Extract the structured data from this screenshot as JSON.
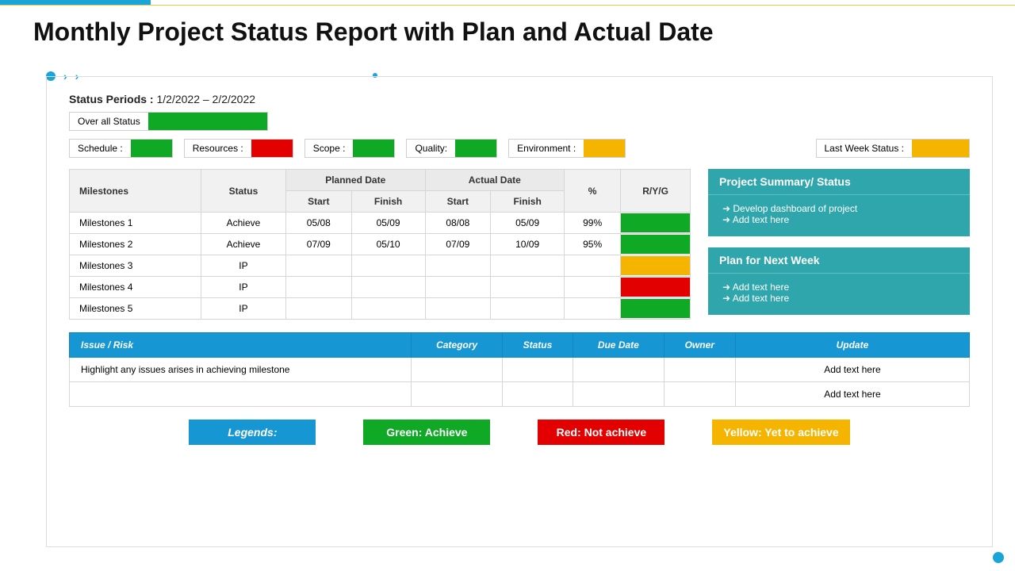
{
  "colors": {
    "accent_blue": "#1aa5d8",
    "header_blue": "#1796d4",
    "teal": "#2fa6ab",
    "green": "#0fa925",
    "red": "#e20000",
    "yellow": "#f5b400",
    "border_gray": "#cfcfcf"
  },
  "title": "Monthly Project Status Report with Plan and Actual Date",
  "status_periods": {
    "label": "Status Periods :",
    "value": "1/2/2022 – 2/2/2022"
  },
  "overall": {
    "label": "Over all Status",
    "color": "#0fa925"
  },
  "status_strip": [
    {
      "label": "Schedule :",
      "color": "#0fa925"
    },
    {
      "label": "Resources :",
      "color": "#e20000"
    },
    {
      "label": "Scope :",
      "color": "#0fa925"
    },
    {
      "label": "Quality:",
      "color": "#0fa925"
    },
    {
      "label": "Environment :",
      "color": "#f5b400"
    }
  ],
  "last_week": {
    "label": "Last Week Status :",
    "color": "#f5b400"
  },
  "milestones": {
    "headers": {
      "milestones": "Milestones",
      "status": "Status",
      "planned": "Planned Date",
      "actual": "Actual Date",
      "start": "Start",
      "finish": "Finish",
      "pct": "%",
      "ryg": "R/Y/G"
    },
    "rows": [
      {
        "name": "Milestones 1",
        "status": "Achieve",
        "p_start": "05/08",
        "p_finish": "05/09",
        "a_start": "08/08",
        "a_finish": "05/09",
        "pct": "99%",
        "ryg": "#0fa925"
      },
      {
        "name": "Milestones 2",
        "status": "Achieve",
        "p_start": "07/09",
        "p_finish": "05/10",
        "a_start": "07/09",
        "a_finish": "10/09",
        "pct": "95%",
        "ryg": "#0fa925"
      },
      {
        "name": "Milestones 3",
        "status": "IP",
        "p_start": "",
        "p_finish": "",
        "a_start": "",
        "a_finish": "",
        "pct": "",
        "ryg": "#f5b400"
      },
      {
        "name": "Milestones 4",
        "status": "IP",
        "p_start": "",
        "p_finish": "",
        "a_start": "",
        "a_finish": "",
        "pct": "",
        "ryg": "#e20000"
      },
      {
        "name": "Milestones 5",
        "status": "IP",
        "p_start": "",
        "p_finish": "",
        "a_start": "",
        "a_finish": "",
        "pct": "",
        "ryg": "#0fa925"
      }
    ]
  },
  "side_panels": {
    "summary": {
      "title": "Project  Summary/ Status",
      "items": [
        "Develop  dashboard  of project",
        "Add text here"
      ]
    },
    "plan": {
      "title": "Plan for Next Week",
      "items": [
        "Add text here",
        "Add text here"
      ]
    }
  },
  "issues": {
    "headers": [
      "Issue / Risk",
      "Category",
      "Status",
      "Due Date",
      "Owner",
      "Update"
    ],
    "rows": [
      {
        "issue": "Highlight any issues arises in achieving milestone",
        "category": "",
        "status": "",
        "due": "",
        "owner": "",
        "update": "Add text here"
      },
      {
        "issue": "",
        "category": "",
        "status": "",
        "due": "",
        "owner": "",
        "update": "Add text here"
      }
    ]
  },
  "legends": {
    "label": "Legends:",
    "items": [
      {
        "text": "Green: Achieve",
        "bg": "#0fa925"
      },
      {
        "text": "Red: Not achieve",
        "bg": "#e20000"
      },
      {
        "text": "Yellow: Yet to achieve",
        "bg": "#f5b400"
      }
    ]
  }
}
